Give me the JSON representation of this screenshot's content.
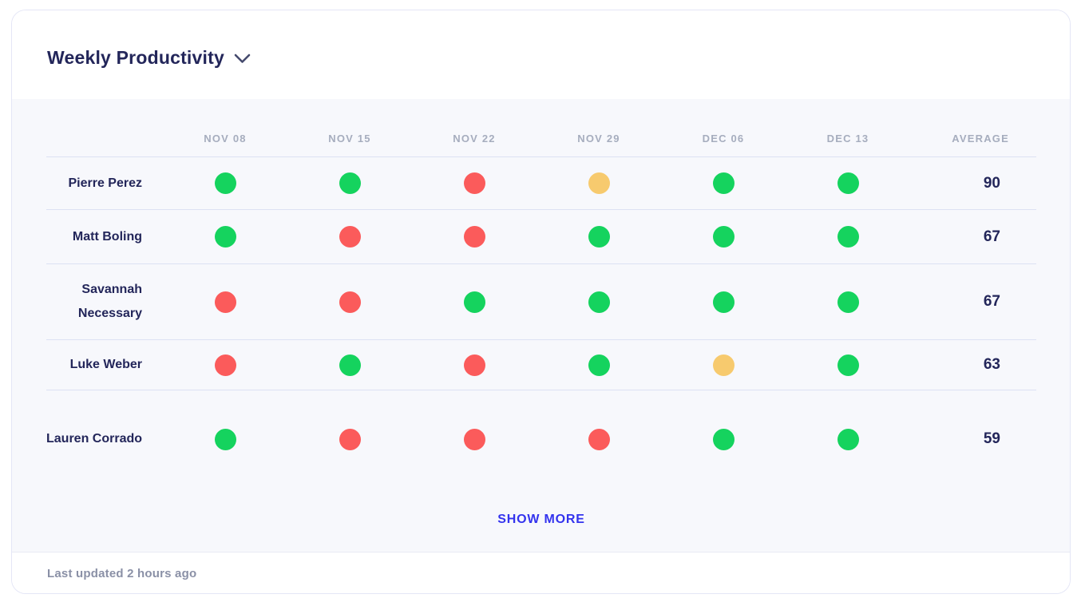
{
  "header": {
    "title": "Weekly Productivity"
  },
  "table": {
    "columns": [
      "NOV 08",
      "NOV 15",
      "NOV 22",
      "NOV 29",
      "DEC 06",
      "DEC 13",
      "AVERAGE"
    ],
    "rows": [
      {
        "name": "Pierre Perez",
        "statuses": [
          "green",
          "green",
          "red",
          "yellow",
          "green",
          "green"
        ],
        "average": 90
      },
      {
        "name": "Matt Boling",
        "statuses": [
          "green",
          "red",
          "red",
          "green",
          "green",
          "green"
        ],
        "average": 67
      },
      {
        "name": "Savannah Necessary",
        "statuses": [
          "red",
          "red",
          "green",
          "green",
          "green",
          "green"
        ],
        "average": 67
      },
      {
        "name": "Luke Weber",
        "statuses": [
          "red",
          "green",
          "red",
          "green",
          "yellow",
          "green"
        ],
        "average": 63
      },
      {
        "name": "Lauren Corrado",
        "statuses": [
          "green",
          "red",
          "red",
          "red",
          "green",
          "green"
        ],
        "average": 59
      }
    ]
  },
  "actions": {
    "show_more": "SHOW MORE"
  },
  "footer": {
    "last_updated": "Last updated 2 hours ago"
  },
  "colors": {
    "green": "#15D35E",
    "red": "#FB5B5B",
    "yellow": "#F7CA6E",
    "link_blue": "#3333EE",
    "navy": "#23265A"
  },
  "icons": {
    "chevron_down": "chevron-down-icon"
  }
}
